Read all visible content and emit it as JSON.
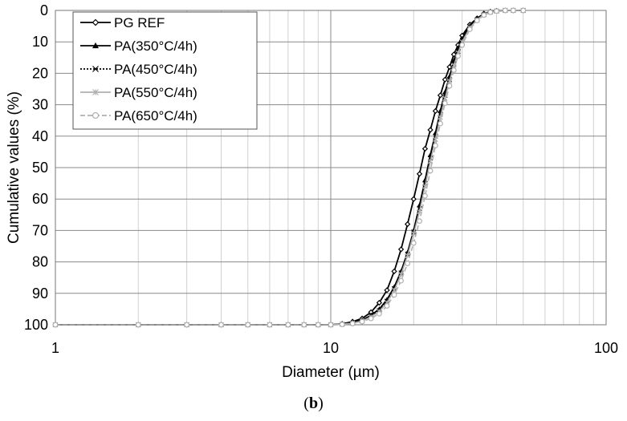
{
  "caption": {
    "open": "(",
    "letter": "b",
    "close": ")"
  },
  "chart_data": {
    "type": "line",
    "xlabel": "Diameter (µm)",
    "ylabel": "Cumulative values (%)",
    "x_scale": "log",
    "xlim": [
      1,
      100
    ],
    "ylim": [
      0,
      100
    ],
    "y_inverted": true,
    "x_ticks": [
      "1",
      "10",
      "100"
    ],
    "y_ticks": [
      "0",
      "10",
      "20",
      "30",
      "40",
      "50",
      "60",
      "70",
      "80",
      "90",
      "100"
    ],
    "grid": true,
    "legend_position": "top-left",
    "series": [
      {
        "name": "PG REF",
        "color": "#000000",
        "marker": "diamond-open",
        "dash": "solid",
        "points": [
          [
            1,
            100
          ],
          [
            2,
            100
          ],
          [
            3,
            100
          ],
          [
            4,
            100
          ],
          [
            5,
            100
          ],
          [
            6,
            100
          ],
          [
            7,
            100
          ],
          [
            8,
            100
          ],
          [
            9,
            100
          ],
          [
            10,
            100
          ],
          [
            11,
            99.7
          ],
          [
            12,
            99
          ],
          [
            13,
            98
          ],
          [
            14,
            96
          ],
          [
            15,
            93
          ],
          [
            16,
            89
          ],
          [
            17,
            83
          ],
          [
            18,
            76
          ],
          [
            19,
            68
          ],
          [
            20,
            60
          ],
          [
            21,
            52
          ],
          [
            22,
            44
          ],
          [
            23,
            38
          ],
          [
            24,
            32
          ],
          [
            25,
            27
          ],
          [
            26,
            22
          ],
          [
            27,
            18
          ],
          [
            28,
            14
          ],
          [
            29,
            11
          ],
          [
            30,
            8
          ],
          [
            32,
            4.5
          ],
          [
            34,
            2.5
          ],
          [
            36,
            1
          ],
          [
            38,
            0.4
          ],
          [
            40,
            0.1
          ],
          [
            43,
            0
          ],
          [
            46,
            0
          ],
          [
            50,
            0
          ]
        ]
      },
      {
        "name": "PA(350°C/4h)",
        "color": "#000000",
        "marker": "triangle-filled",
        "dash": "solid",
        "points": [
          [
            1,
            100
          ],
          [
            2,
            100
          ],
          [
            3,
            100
          ],
          [
            4,
            100
          ],
          [
            5,
            100
          ],
          [
            6,
            100
          ],
          [
            7,
            100
          ],
          [
            8,
            100
          ],
          [
            9,
            100
          ],
          [
            10,
            100
          ],
          [
            11,
            99.8
          ],
          [
            12,
            99.4
          ],
          [
            13,
            98.5
          ],
          [
            14,
            97
          ],
          [
            15,
            95
          ],
          [
            16,
            92
          ],
          [
            17,
            88
          ],
          [
            18,
            83
          ],
          [
            19,
            77
          ],
          [
            20,
            70
          ],
          [
            21,
            62
          ],
          [
            22,
            54
          ],
          [
            23,
            46
          ],
          [
            24,
            39
          ],
          [
            25,
            32
          ],
          [
            26,
            26
          ],
          [
            27,
            21
          ],
          [
            28,
            16
          ],
          [
            29,
            12
          ],
          [
            30,
            9
          ],
          [
            32,
            5
          ],
          [
            34,
            2.5
          ],
          [
            36,
            1.2
          ],
          [
            38,
            0.5
          ],
          [
            40,
            0.2
          ],
          [
            43,
            0
          ],
          [
            46,
            0
          ],
          [
            50,
            0
          ]
        ]
      },
      {
        "name": "PA(450°C/4h)",
        "color": "#000000",
        "marker": "x",
        "dash": "dotted",
        "points": [
          [
            1,
            100
          ],
          [
            2,
            100
          ],
          [
            3,
            100
          ],
          [
            4,
            100
          ],
          [
            5,
            100
          ],
          [
            6,
            100
          ],
          [
            7,
            100
          ],
          [
            8,
            100
          ],
          [
            9,
            100
          ],
          [
            10,
            100
          ],
          [
            11,
            99.8
          ],
          [
            12,
            99.5
          ],
          [
            13,
            98.7
          ],
          [
            14,
            97.3
          ],
          [
            15,
            95.5
          ],
          [
            16,
            92.5
          ],
          [
            17,
            88.5
          ],
          [
            18,
            83.5
          ],
          [
            19,
            77.5
          ],
          [
            20,
            70.5
          ],
          [
            21,
            63
          ],
          [
            22,
            55
          ],
          [
            23,
            47
          ],
          [
            24,
            40
          ],
          [
            25,
            33
          ],
          [
            26,
            27
          ],
          [
            27,
            22
          ],
          [
            28,
            17
          ],
          [
            29,
            13
          ],
          [
            30,
            10
          ],
          [
            32,
            5.5
          ],
          [
            34,
            3
          ],
          [
            36,
            1.3
          ],
          [
            38,
            0.5
          ],
          [
            40,
            0.2
          ],
          [
            43,
            0
          ],
          [
            46,
            0
          ],
          [
            50,
            0
          ]
        ]
      },
      {
        "name": "PA(550°C/4h)",
        "color": "#b0b0b0",
        "marker": "asterisk",
        "dash": "solid",
        "points": [
          [
            1,
            100
          ],
          [
            2,
            100
          ],
          [
            3,
            100
          ],
          [
            4,
            100
          ],
          [
            5,
            100
          ],
          [
            6,
            100
          ],
          [
            7,
            100
          ],
          [
            8,
            100
          ],
          [
            9,
            100
          ],
          [
            10,
            100
          ],
          [
            11,
            99.8
          ],
          [
            12,
            99.5
          ],
          [
            13,
            98.8
          ],
          [
            14,
            97.5
          ],
          [
            15,
            95.8
          ],
          [
            16,
            93
          ],
          [
            17,
            89
          ],
          [
            18,
            84
          ],
          [
            19,
            78
          ],
          [
            20,
            71
          ],
          [
            21,
            64
          ],
          [
            22,
            56
          ],
          [
            23,
            48
          ],
          [
            24,
            41
          ],
          [
            25,
            34
          ],
          [
            26,
            28
          ],
          [
            27,
            22.5
          ],
          [
            28,
            17.5
          ],
          [
            29,
            13.5
          ],
          [
            30,
            10
          ],
          [
            32,
            5.5
          ],
          [
            34,
            3
          ],
          [
            36,
            1.3
          ],
          [
            38,
            0.5
          ],
          [
            40,
            0.2
          ],
          [
            43,
            0
          ],
          [
            46,
            0
          ],
          [
            50,
            0
          ]
        ]
      },
      {
        "name": "PA(650°C/4h)",
        "color": "#b0b0b0",
        "marker": "circle-open",
        "dash": "dashed",
        "points": [
          [
            1,
            100
          ],
          [
            2,
            100
          ],
          [
            3,
            100
          ],
          [
            4,
            100
          ],
          [
            5,
            100
          ],
          [
            6,
            100
          ],
          [
            7,
            100
          ],
          [
            8,
            100
          ],
          [
            9,
            100
          ],
          [
            10,
            100
          ],
          [
            11,
            99.9
          ],
          [
            12,
            99.6
          ],
          [
            13,
            99
          ],
          [
            14,
            98
          ],
          [
            15,
            96.5
          ],
          [
            16,
            94
          ],
          [
            17,
            90.5
          ],
          [
            18,
            86
          ],
          [
            19,
            80.5
          ],
          [
            20,
            74
          ],
          [
            21,
            67
          ],
          [
            22,
            59
          ],
          [
            23,
            51
          ],
          [
            24,
            43
          ],
          [
            25,
            36
          ],
          [
            26,
            29.5
          ],
          [
            27,
            24
          ],
          [
            28,
            19
          ],
          [
            29,
            14.5
          ],
          [
            30,
            11
          ],
          [
            32,
            6
          ],
          [
            34,
            3.2
          ],
          [
            36,
            1.5
          ],
          [
            38,
            0.6
          ],
          [
            40,
            0.2
          ],
          [
            43,
            0
          ],
          [
            46,
            0
          ],
          [
            50,
            0
          ]
        ]
      }
    ]
  }
}
